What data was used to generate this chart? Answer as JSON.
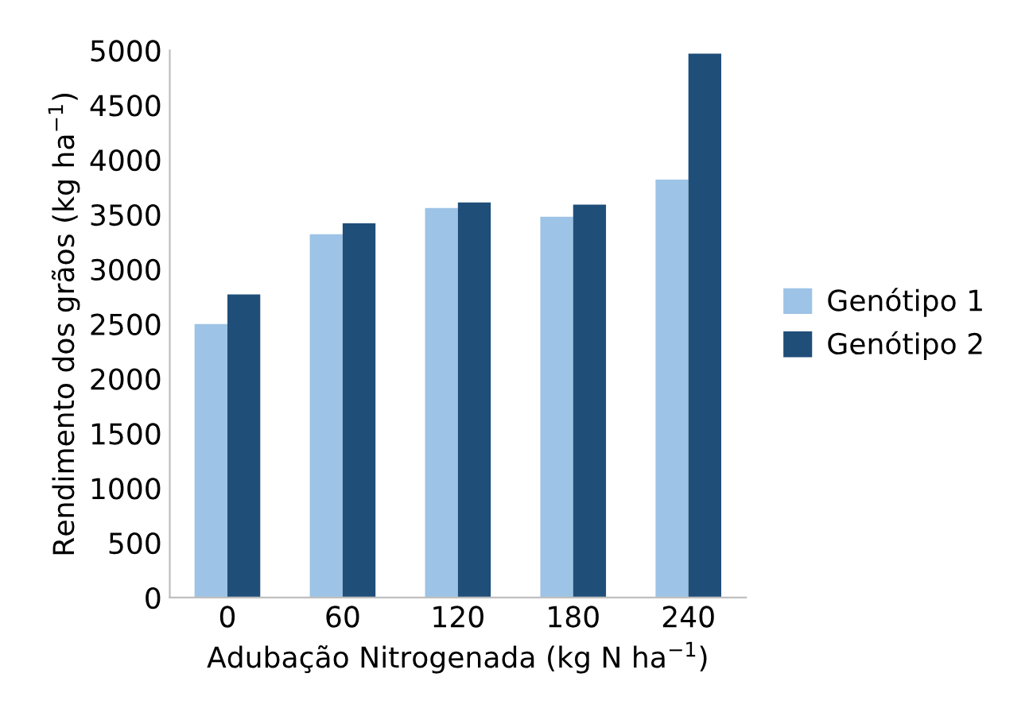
{
  "chart_data": {
    "type": "bar",
    "xlabel": "Adubação Nitrogenada (kg N ha$^{−1}$)",
    "ylabel": "Rendimento dos grãos (kg ha$^{−1}$)",
    "categories": [
      "0",
      "60",
      "120",
      "180",
      "240"
    ],
    "series": [
      {
        "name": "Genótipo 1",
        "color": "#9dc3e6",
        "values": [
          2500,
          3320,
          3560,
          3480,
          3820
        ]
      },
      {
        "name": "Genótipo 2",
        "color": "#1f4e79",
        "values": [
          2770,
          3420,
          3610,
          3590,
          4970
        ]
      }
    ],
    "ylim": [
      0,
      5000
    ],
    "yticks": [
      0,
      500,
      1000,
      1500,
      2000,
      2500,
      3000,
      3500,
      4000,
      4500,
      5000
    ],
    "grid": false,
    "legend": "right"
  }
}
